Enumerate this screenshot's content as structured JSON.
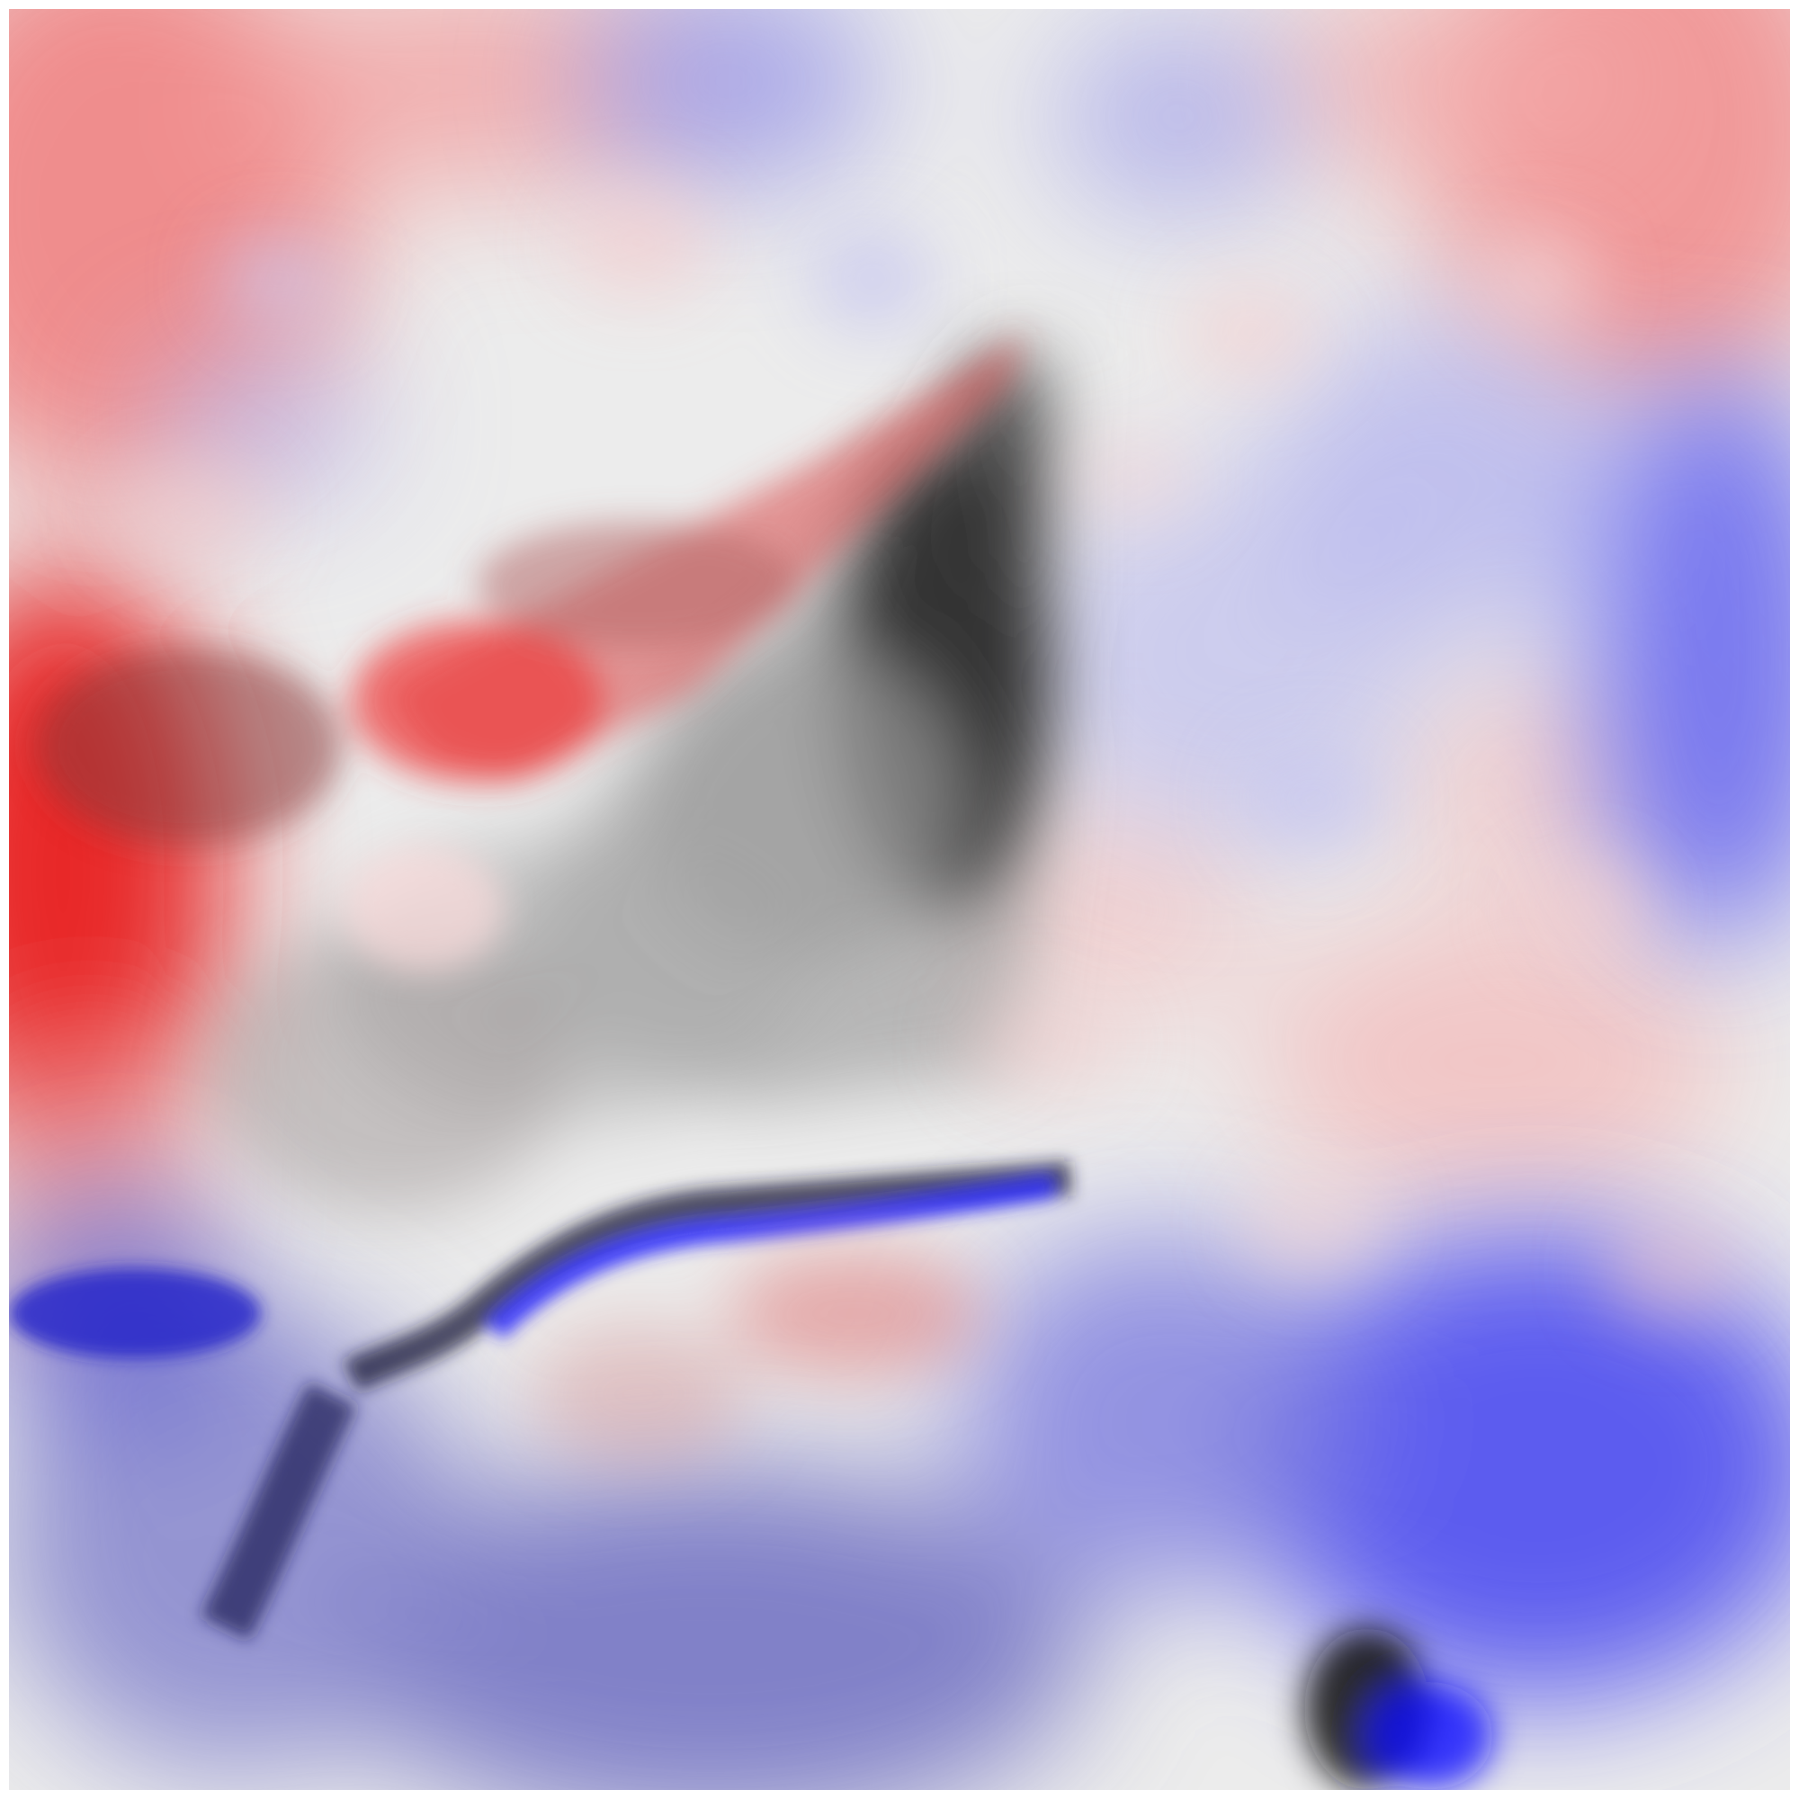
{
  "image": {
    "kind": "diverging-colormap-field",
    "colormap": {
      "negative": "#0000ff",
      "neutral": "#efefef",
      "positive": "#ff0000",
      "dark_overlay": "#000000"
    }
  }
}
